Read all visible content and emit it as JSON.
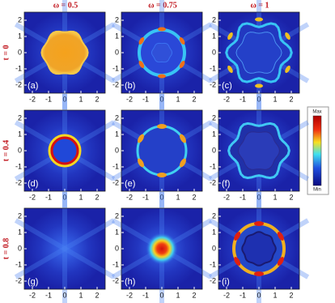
{
  "columns": [
    "ω = 0.5",
    "ω = 0.75",
    "ω = 1"
  ],
  "rows": [
    "t = 0",
    "t = 0.4",
    "t = 0.8"
  ],
  "panels": [
    "(a)",
    "(b)",
    "(c)",
    "(d)",
    "(e)",
    "(f)",
    "(g)",
    "(h)",
    "(i)"
  ],
  "ticks": [
    -2,
    -1,
    0,
    1,
    2
  ],
  "lim": [
    -2.5,
    2.5
  ],
  "colorbar": {
    "max": "Max",
    "min": "Min"
  }
}
